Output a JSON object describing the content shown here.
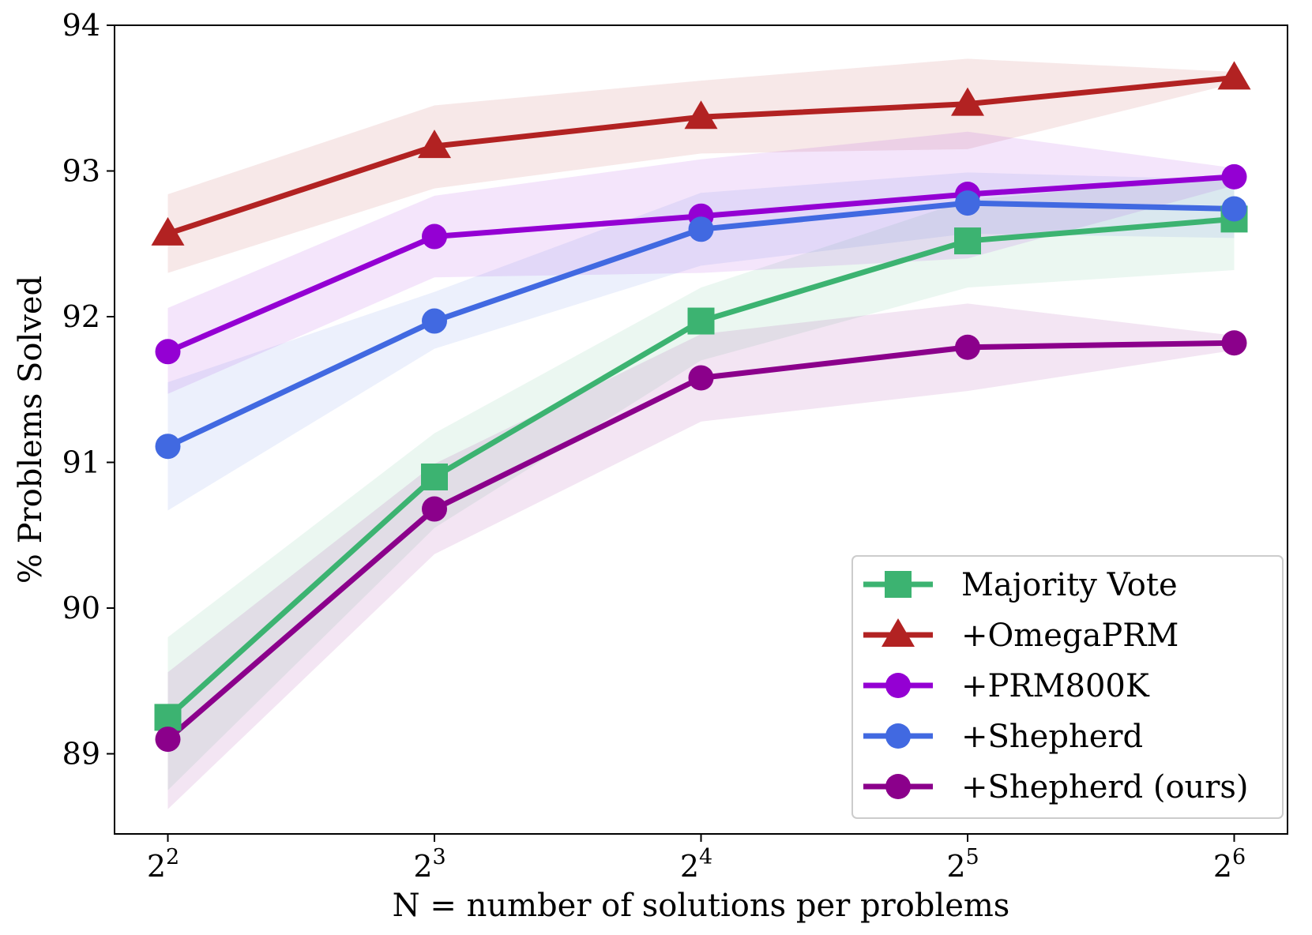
{
  "chart_data": {
    "type": "line",
    "x": [
      2,
      3,
      4,
      5,
      6
    ],
    "x_tick_labels": [
      {
        "base": "2",
        "exp": "2"
      },
      {
        "base": "2",
        "exp": "3"
      },
      {
        "base": "2",
        "exp": "4"
      },
      {
        "base": "2",
        "exp": "5"
      },
      {
        "base": "2",
        "exp": "6"
      }
    ],
    "x_scale": "log2",
    "xlabel": "N = number of solutions per problems",
    "ylabel": "% Problems Solved",
    "ylim": [
      88.45,
      94.0
    ],
    "y_ticks": [
      "89",
      "90",
      "91",
      "92",
      "93",
      "94"
    ],
    "grid": false,
    "legend_position": "bottom-right",
    "series": [
      {
        "name": "Majority Vote",
        "color": "#3cb371",
        "marker": "square",
        "values": [
          89.25,
          90.9,
          91.97,
          92.52,
          92.67
        ],
        "lower": [
          88.75,
          90.55,
          91.7,
          92.2,
          92.32
        ],
        "upper": [
          89.8,
          91.2,
          92.2,
          92.8,
          92.97
        ]
      },
      {
        "name": "+OmegaPRM",
        "color": "#b22222",
        "marker": "triangle",
        "values": [
          92.57,
          93.17,
          93.37,
          93.46,
          93.64
        ],
        "lower": [
          92.3,
          92.88,
          93.12,
          93.15,
          93.6
        ],
        "upper": [
          92.84,
          93.45,
          93.62,
          93.77,
          93.68
        ]
      },
      {
        "name": "+PRM800K",
        "color": "#9400d3",
        "marker": "circle",
        "values": [
          91.76,
          92.55,
          92.69,
          92.84,
          92.96
        ],
        "lower": [
          91.47,
          92.27,
          92.3,
          92.4,
          92.9
        ],
        "upper": [
          92.06,
          92.83,
          93.08,
          93.27,
          93.02
        ]
      },
      {
        "name": "+Shepherd",
        "color": "#4169e1",
        "marker": "circle",
        "values": [
          91.11,
          91.97,
          92.6,
          92.78,
          92.74
        ],
        "lower": [
          90.67,
          91.78,
          92.35,
          92.57,
          92.54
        ],
        "upper": [
          91.55,
          92.17,
          92.85,
          92.99,
          92.94
        ]
      },
      {
        "name": "+Shepherd (ours)",
        "color": "#8b008b",
        "marker": "circle",
        "values": [
          89.1,
          90.68,
          91.58,
          91.79,
          91.82
        ],
        "lower": [
          88.62,
          90.37,
          91.28,
          91.49,
          91.77
        ],
        "upper": [
          89.56,
          90.99,
          91.88,
          92.09,
          91.87
        ]
      }
    ]
  }
}
